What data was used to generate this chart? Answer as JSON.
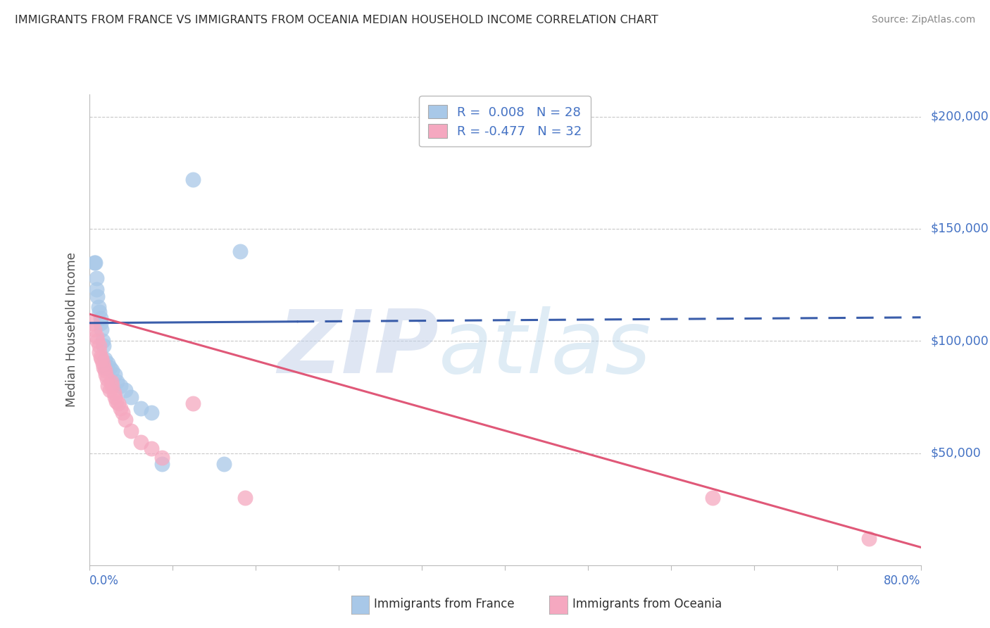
{
  "title": "IMMIGRANTS FROM FRANCE VS IMMIGRANTS FROM OCEANIA MEDIAN HOUSEHOLD INCOME CORRELATION CHART",
  "source": "Source: ZipAtlas.com",
  "ylabel": "Median Household Income",
  "xmin": 0.0,
  "xmax": 80.0,
  "ymin": 0,
  "ymax": 210000,
  "legend1_r": "0.008",
  "legend1_n": "28",
  "legend2_r": "-0.477",
  "legend2_n": "32",
  "france_color": "#a8c8e8",
  "oceania_color": "#f5a8c0",
  "france_line_color": "#3a5daa",
  "oceania_line_color": "#e05878",
  "watermark_zip": "ZIP",
  "watermark_atlas": "atlas",
  "grid_color": "#c8c8c8",
  "background_color": "#ffffff",
  "title_color": "#303030",
  "axis_label_color": "#505050",
  "tick_color": "#4472c4",
  "ytick_vals": [
    0,
    50000,
    100000,
    150000,
    200000
  ],
  "ytick_labels": [
    "",
    "$50,000",
    "$100,000",
    "$150,000",
    "$200,000"
  ],
  "france_x": [
    0.5,
    0.6,
    0.7,
    0.7,
    0.8,
    0.9,
    1.0,
    1.1,
    1.1,
    1.2,
    1.3,
    1.4,
    1.5,
    1.6,
    1.8,
    2.0,
    2.2,
    2.5,
    2.7,
    3.0,
    3.5,
    4.0,
    5.0,
    6.0,
    7.0,
    10.0,
    13.0,
    14.5
  ],
  "france_y": [
    135000,
    135000,
    128000,
    123000,
    120000,
    115000,
    113000,
    110000,
    108000,
    105000,
    100000,
    98000,
    92000,
    88000,
    90000,
    88000,
    87000,
    85000,
    82000,
    80000,
    78000,
    75000,
    70000,
    68000,
    45000,
    172000,
    45000,
    140000
  ],
  "oceania_x": [
    0.3,
    0.5,
    0.7,
    0.8,
    1.0,
    1.0,
    1.1,
    1.2,
    1.3,
    1.4,
    1.5,
    1.6,
    1.7,
    1.8,
    2.0,
    2.1,
    2.2,
    2.4,
    2.5,
    2.6,
    2.8,
    3.0,
    3.2,
    3.5,
    4.0,
    5.0,
    6.0,
    7.0,
    10.0,
    15.0,
    60.0,
    75.0
  ],
  "oceania_y": [
    108000,
    105000,
    102000,
    100000,
    98000,
    95000,
    93000,
    92000,
    90000,
    88000,
    87000,
    85000,
    83000,
    80000,
    78000,
    82000,
    80000,
    77000,
    75000,
    73000,
    72000,
    70000,
    68000,
    65000,
    60000,
    55000,
    52000,
    48000,
    72000,
    30000,
    30000,
    12000
  ],
  "france_line_x": [
    0.0,
    80.0
  ],
  "france_line_y": [
    108000,
    110500
  ],
  "oceania_line_x": [
    0.0,
    80.0
  ],
  "oceania_line_y": [
    112000,
    8000
  ],
  "france_solid_end": 20.0,
  "oceania_solid_end": 80.0
}
